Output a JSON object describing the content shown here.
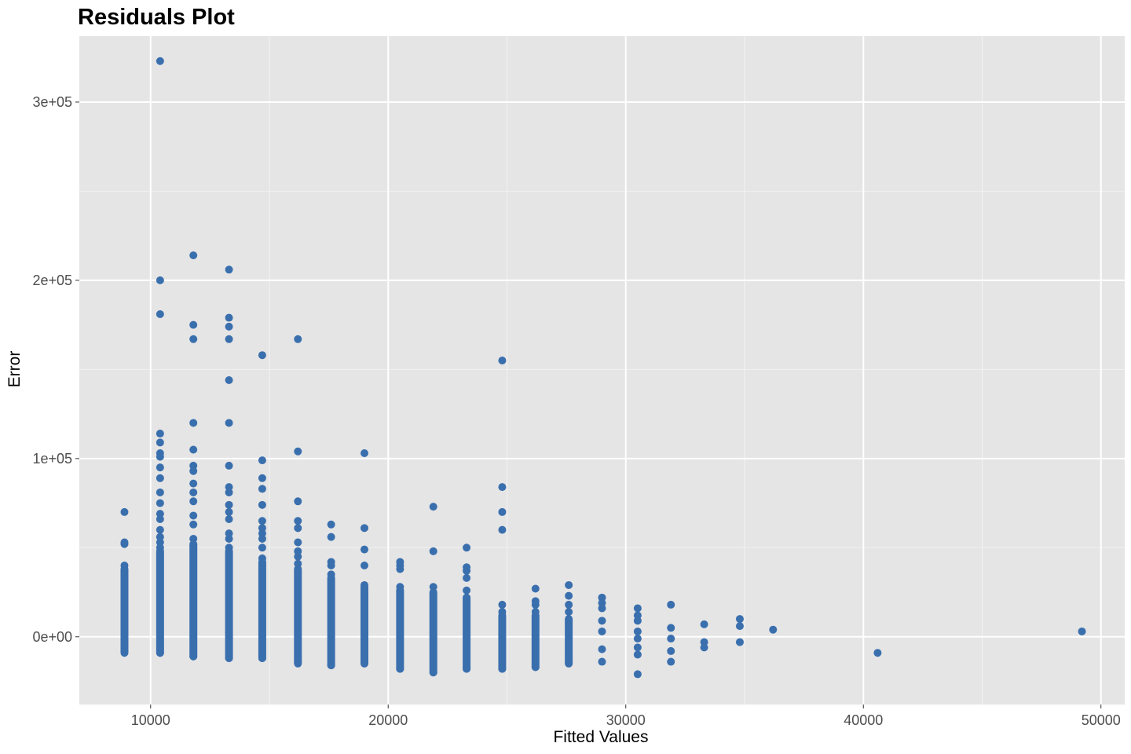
{
  "colors": {
    "panel_background": "#e5e5e5",
    "grid_major": "#ffffff",
    "grid_minor": "#f2f2f2",
    "point": "#3a6fae",
    "tick_text": "#4d4d4d"
  },
  "chart_data": {
    "type": "scatter",
    "title": "Residuals Plot",
    "xlabel": "Fitted Values",
    "ylabel": "Error",
    "xlim": [
      7000,
      51000
    ],
    "ylim": [
      -38000,
      337000
    ],
    "x_ticks": [
      {
        "value": 10000,
        "label": "10000"
      },
      {
        "value": 20000,
        "label": "20000"
      },
      {
        "value": 30000,
        "label": "30000"
      },
      {
        "value": 40000,
        "label": "40000"
      },
      {
        "value": 50000,
        "label": "50000"
      }
    ],
    "y_ticks": [
      {
        "value": 0,
        "label": "0e+00"
      },
      {
        "value": 100000,
        "label": "1e+05"
      },
      {
        "value": 200000,
        "label": "2e+05"
      },
      {
        "value": 300000,
        "label": "3e+05"
      }
    ],
    "grid": true,
    "legend": "none",
    "series": [
      {
        "points": [
          [
            8900,
            -8000
          ],
          [
            8900,
            40000
          ],
          [
            8900,
            52000
          ],
          [
            8900,
            53000
          ],
          [
            8900,
            70000
          ],
          [
            10400,
            -9000
          ],
          [
            10400,
            50000
          ],
          [
            10400,
            53000
          ],
          [
            10400,
            56000
          ],
          [
            10400,
            60000
          ],
          [
            10400,
            66000
          ],
          [
            10400,
            69000
          ],
          [
            10400,
            75000
          ],
          [
            10400,
            81000
          ],
          [
            10400,
            89000
          ],
          [
            10400,
            95000
          ],
          [
            10400,
            101000
          ],
          [
            10400,
            103000
          ],
          [
            10400,
            109000
          ],
          [
            10400,
            114000
          ],
          [
            10400,
            181000
          ],
          [
            10400,
            200000
          ],
          [
            10400,
            323000
          ],
          [
            11800,
            -11000
          ],
          [
            11800,
            55000
          ],
          [
            11800,
            63000
          ],
          [
            11800,
            68000
          ],
          [
            11800,
            76000
          ],
          [
            11800,
            81000
          ],
          [
            11800,
            86000
          ],
          [
            11800,
            93000
          ],
          [
            11800,
            96000
          ],
          [
            11800,
            105000
          ],
          [
            11800,
            120000
          ],
          [
            11800,
            167000
          ],
          [
            11800,
            175000
          ],
          [
            11800,
            214000
          ],
          [
            13300,
            -12000
          ],
          [
            13300,
            50000
          ],
          [
            13300,
            55000
          ],
          [
            13300,
            58000
          ],
          [
            13300,
            66000
          ],
          [
            13300,
            70000
          ],
          [
            13300,
            74000
          ],
          [
            13300,
            81000
          ],
          [
            13300,
            84000
          ],
          [
            13300,
            96000
          ],
          [
            13300,
            120000
          ],
          [
            13300,
            144000
          ],
          [
            13300,
            167000
          ],
          [
            13300,
            174000
          ],
          [
            13300,
            179000
          ],
          [
            13300,
            206000
          ],
          [
            14700,
            -12000
          ],
          [
            14700,
            44000
          ],
          [
            14700,
            50000
          ],
          [
            14700,
            55000
          ],
          [
            14700,
            58000
          ],
          [
            14700,
            61000
          ],
          [
            14700,
            65000
          ],
          [
            14700,
            74000
          ],
          [
            14700,
            83000
          ],
          [
            14700,
            89000
          ],
          [
            14700,
            99000
          ],
          [
            14700,
            158000
          ],
          [
            16200,
            -14000
          ],
          [
            16200,
            41000
          ],
          [
            16200,
            45000
          ],
          [
            16200,
            48000
          ],
          [
            16200,
            53000
          ],
          [
            16200,
            61000
          ],
          [
            16200,
            65000
          ],
          [
            16200,
            76000
          ],
          [
            16200,
            104000
          ],
          [
            16200,
            167000
          ],
          [
            17600,
            -16000
          ],
          [
            17600,
            35000
          ],
          [
            17600,
            40000
          ],
          [
            17600,
            42000
          ],
          [
            17600,
            56000
          ],
          [
            17600,
            63000
          ],
          [
            19000,
            -15000
          ],
          [
            19000,
            29000
          ],
          [
            19000,
            40000
          ],
          [
            19000,
            49000
          ],
          [
            19000,
            61000
          ],
          [
            19000,
            103000
          ],
          [
            20500,
            -18000
          ],
          [
            20500,
            28000
          ],
          [
            20500,
            38000
          ],
          [
            20500,
            40000
          ],
          [
            20500,
            42000
          ],
          [
            21900,
            -20000
          ],
          [
            21900,
            28000
          ],
          [
            21900,
            48000
          ],
          [
            21900,
            73000
          ],
          [
            23300,
            -18000
          ],
          [
            23300,
            26000
          ],
          [
            23300,
            33000
          ],
          [
            23300,
            37000
          ],
          [
            23300,
            39000
          ],
          [
            23300,
            50000
          ],
          [
            24800,
            -18000
          ],
          [
            24800,
            14000
          ],
          [
            24800,
            18000
          ],
          [
            24800,
            60000
          ],
          [
            24800,
            70000
          ],
          [
            24800,
            84000
          ],
          [
            24800,
            155000
          ],
          [
            26200,
            -17000
          ],
          [
            26200,
            14000
          ],
          [
            26200,
            18000
          ],
          [
            26200,
            20000
          ],
          [
            26200,
            27000
          ],
          [
            27600,
            -15000
          ],
          [
            27600,
            14000
          ],
          [
            27600,
            18000
          ],
          [
            27600,
            23000
          ],
          [
            27600,
            29000
          ],
          [
            29000,
            -14000
          ],
          [
            29000,
            -7000
          ],
          [
            29000,
            3000
          ],
          [
            29000,
            9000
          ],
          [
            29000,
            16000
          ],
          [
            29000,
            19000
          ],
          [
            29000,
            22000
          ],
          [
            30500,
            -21000
          ],
          [
            30500,
            -10000
          ],
          [
            30500,
            -6000
          ],
          [
            30500,
            -1000
          ],
          [
            30500,
            3000
          ],
          [
            30500,
            9000
          ],
          [
            30500,
            12000
          ],
          [
            30500,
            16000
          ],
          [
            31900,
            -14000
          ],
          [
            31900,
            -8000
          ],
          [
            31900,
            -1000
          ],
          [
            31900,
            5000
          ],
          [
            31900,
            18000
          ],
          [
            33300,
            -6000
          ],
          [
            33300,
            -3000
          ],
          [
            33300,
            7000
          ],
          [
            34800,
            -3000
          ],
          [
            34800,
            6000
          ],
          [
            34800,
            10000
          ],
          [
            36200,
            4000
          ],
          [
            40600,
            -9000
          ],
          [
            49200,
            3000
          ]
        ],
        "columns": [
          {
            "x": 8900,
            "from": -9000,
            "to": 38000
          },
          {
            "x": 10400,
            "from": -9000,
            "to": 48000
          },
          {
            "x": 11800,
            "from": -11000,
            "to": 52000
          },
          {
            "x": 13300,
            "from": -12000,
            "to": 48000
          },
          {
            "x": 14700,
            "from": -12000,
            "to": 42000
          },
          {
            "x": 16200,
            "from": -15000,
            "to": 38000
          },
          {
            "x": 17600,
            "from": -16000,
            "to": 33000
          },
          {
            "x": 19000,
            "from": -15000,
            "to": 28000
          },
          {
            "x": 20500,
            "from": -18000,
            "to": 26000
          },
          {
            "x": 21900,
            "from": -20000,
            "to": 25000
          },
          {
            "x": 23300,
            "from": -18000,
            "to": 22000
          },
          {
            "x": 24800,
            "from": -18000,
            "to": 12000
          },
          {
            "x": 26200,
            "from": -17000,
            "to": 12000
          },
          {
            "x": 27600,
            "from": -15000,
            "to": 10000
          }
        ]
      }
    ]
  }
}
